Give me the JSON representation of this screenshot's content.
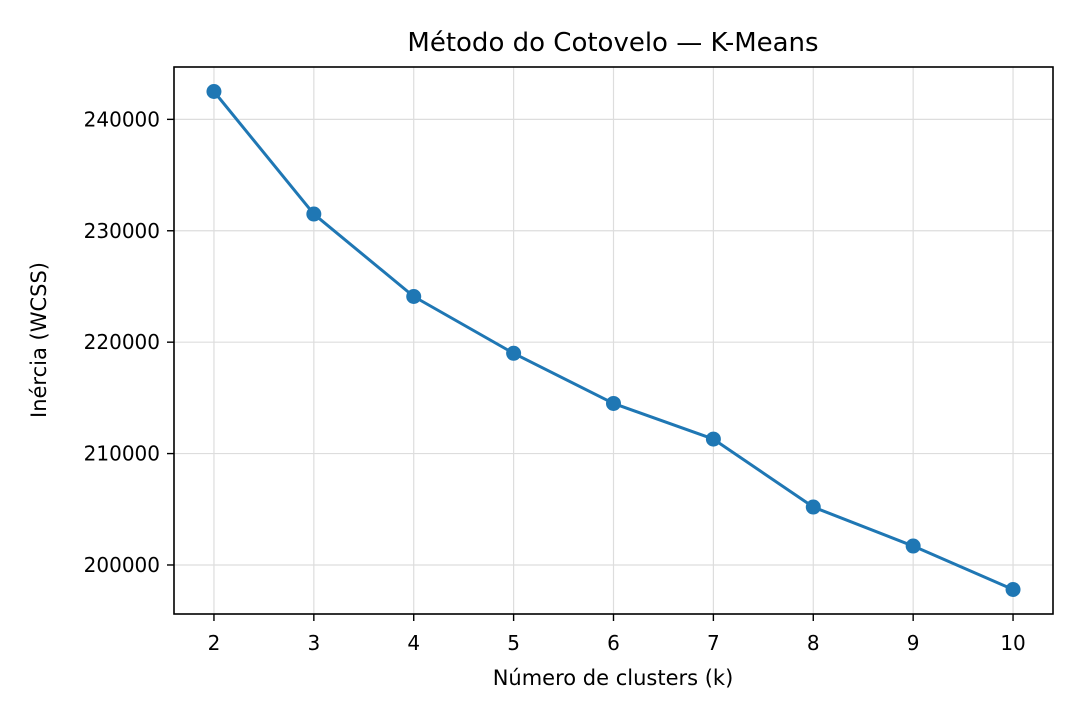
{
  "chart_data": {
    "type": "line",
    "title": "Método do Cotovelo — K-Means",
    "xlabel": "Número de clusters (k)",
    "ylabel": "Inércia (WCSS)",
    "x": [
      2,
      3,
      4,
      5,
      6,
      7,
      8,
      9,
      10
    ],
    "series": [
      {
        "values": [
          242500,
          231500,
          224100,
          219000,
          214500,
          211300,
          205200,
          201700,
          197800
        ]
      }
    ],
    "xlim": [
      1.6,
      10.4
    ],
    "ylim": [
      195600,
      244700
    ],
    "xticks": [
      "2",
      "3",
      "4",
      "5",
      "6",
      "7",
      "8",
      "9",
      "10"
    ],
    "yticks": [
      200000,
      210000,
      220000,
      230000,
      240000
    ],
    "ytick_labels": [
      "200000",
      "210000",
      "220000",
      "230000",
      "240000"
    ],
    "grid": true,
    "markers": "circle",
    "colors": {
      "line": "#1f77b4",
      "grid": "#dddddd",
      "axes": "#000000"
    }
  }
}
